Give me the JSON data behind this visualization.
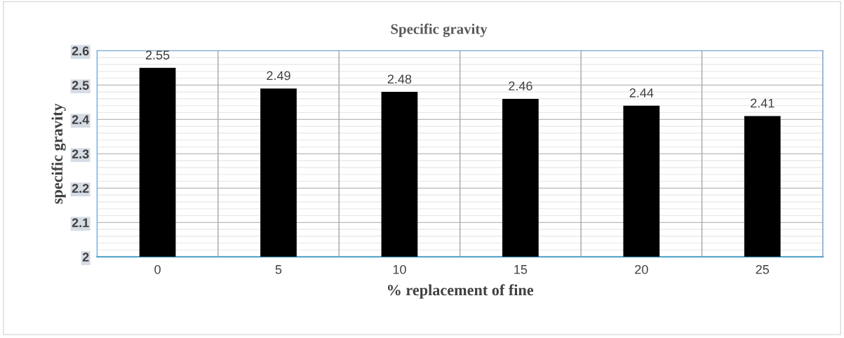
{
  "chart_data": {
    "type": "bar",
    "title": "Specific gravity",
    "xlabel": "% replacement of fine",
    "ylabel": "specific gravity",
    "categories": [
      "0",
      "5",
      "10",
      "15",
      "20",
      "25"
    ],
    "values": [
      2.55,
      2.49,
      2.48,
      2.46,
      2.44,
      2.41
    ],
    "color": "#000000",
    "data_labels": true,
    "ylim": [
      2,
      2.6
    ],
    "yticks": [
      2,
      2.1,
      2.2,
      2.3,
      2.4,
      2.5,
      2.6
    ],
    "grid": true
  }
}
